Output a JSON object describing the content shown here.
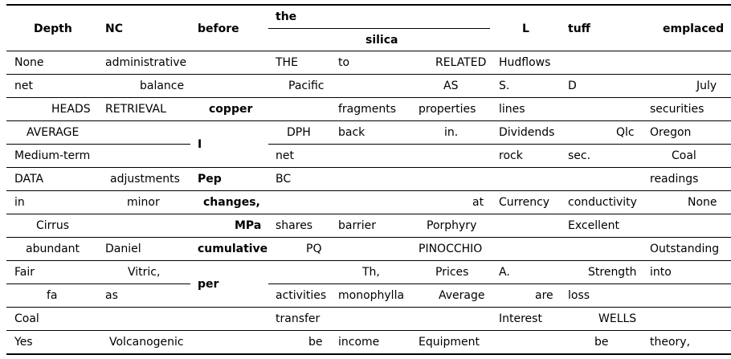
{
  "header": {
    "depth": "Depth",
    "nc": "NC",
    "before": "before",
    "the": "the",
    "silica": "silica",
    "l": "L",
    "tuff": "tuff",
    "emplaced": "emplaced"
  },
  "rows": [
    [
      "None",
      "administrative",
      "",
      "THE",
      "to",
      "RELATED",
      "Hudflows",
      "",
      ""
    ],
    [
      "net",
      "balance",
      "",
      "Pacific",
      "",
      "AS",
      "S.",
      "D",
      "July"
    ],
    [
      "HEADS",
      "RETRIEVAL",
      "copper",
      "",
      "fragments",
      "properties",
      "lines",
      "",
      "securities"
    ],
    [
      "AVERAGE",
      "",
      "",
      "DPH",
      "back",
      "in.",
      "Dividends",
      "Qlc",
      "Oregon"
    ],
    [
      "Medium-term",
      "",
      "",
      "net",
      "",
      "",
      "rock",
      "sec.",
      "Coal"
    ],
    [
      "DATA",
      "adjustments",
      "Pep",
      "BC",
      "",
      "",
      "",
      "",
      "readings"
    ],
    [
      "in",
      "minor",
      "changes,",
      "",
      "",
      "at",
      "Currency",
      "conductivity",
      "None"
    ],
    [
      "Cirrus",
      "",
      "MPa",
      "shares",
      "barrier",
      "Porphyry",
      "",
      "Excellent",
      ""
    ],
    [
      "abundant",
      "Daniel",
      "cumulative",
      "PQ",
      "",
      "PINOCCHIO",
      "",
      "",
      "Outstanding"
    ],
    [
      "Fair",
      "Vitric,",
      "",
      "",
      "Th,",
      "Prices",
      "A.",
      "Strength",
      "into"
    ],
    [
      "fa",
      "as",
      "",
      "activities",
      "monophylla",
      "Average",
      "are",
      "loss",
      ""
    ],
    [
      "Coal",
      "",
      "",
      "transfer",
      "",
      "",
      "Interest",
      "WELLS",
      ""
    ],
    [
      "Yes",
      "Volcanogenic",
      "",
      "be",
      "income",
      "Equipment",
      "",
      "be",
      "theory,"
    ]
  ],
  "merged": {
    "col2_rows_3_4": "I",
    "col2_rows_9_10": "per"
  }
}
